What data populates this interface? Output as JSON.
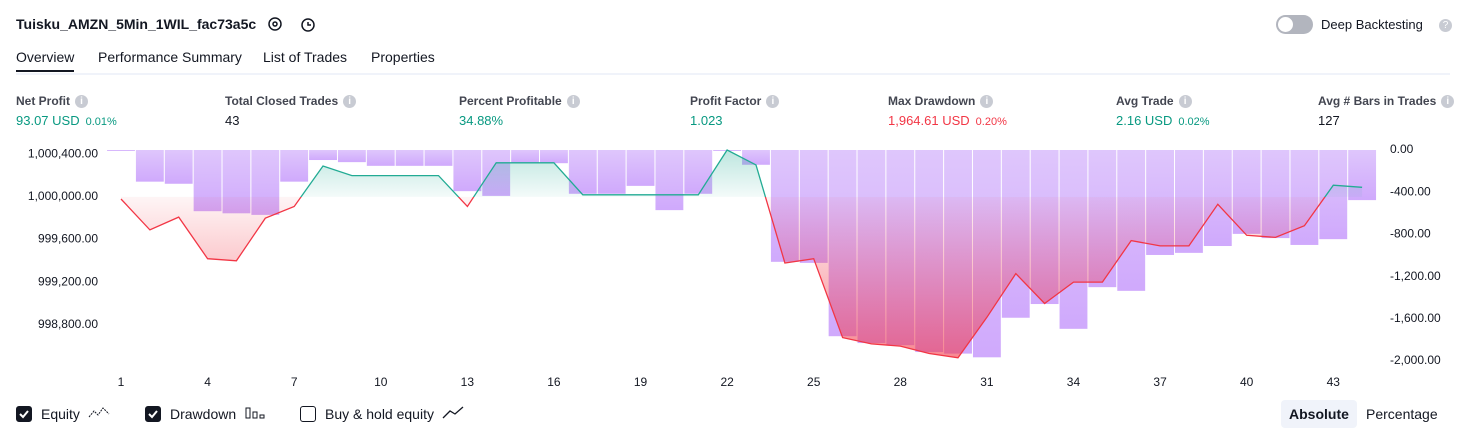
{
  "header": {
    "title": "Tuisku_AMZN_5Min_1WIL_fac73a5c",
    "deep_backtesting": "Deep Backtesting"
  },
  "tabs": [
    {
      "label": "Overview",
      "active": true
    },
    {
      "label": "Performance Summary",
      "active": false
    },
    {
      "label": "List of Trades",
      "active": false
    },
    {
      "label": "Properties",
      "active": false
    }
  ],
  "metrics": [
    {
      "label": "Net Profit",
      "value": "93.07 USD",
      "percent": "0.01%",
      "color": "#089981"
    },
    {
      "label": "Total Closed Trades",
      "value": "43",
      "color": "#131722"
    },
    {
      "label": "Percent Profitable",
      "value": "34.88%",
      "color": "#089981"
    },
    {
      "label": "Profit Factor",
      "value": "1.023",
      "color": "#089981"
    },
    {
      "label": "Max Drawdown",
      "value": "1,964.61 USD",
      "percent": "0.20%",
      "color": "#f23645"
    },
    {
      "label": "Avg Trade",
      "value": "2.16 USD",
      "percent": "0.02%",
      "color": "#089981"
    },
    {
      "label": "Avg # Bars in Trades",
      "value": "127",
      "color": "#131722"
    }
  ],
  "chart_data": {
    "type": "combo",
    "x": [
      1,
      2,
      3,
      4,
      5,
      6,
      7,
      8,
      9,
      10,
      11,
      12,
      13,
      14,
      15,
      16,
      17,
      18,
      19,
      20,
      21,
      22,
      23,
      24,
      25,
      26,
      27,
      28,
      29,
      30,
      31,
      32,
      33,
      34,
      35,
      36,
      37,
      38,
      39,
      40,
      41,
      42,
      43,
      44
    ],
    "xlim": [
      0.55,
      44.55
    ],
    "xticks": [
      1,
      4,
      7,
      10,
      13,
      16,
      19,
      22,
      25,
      28,
      31,
      34,
      37,
      40,
      43
    ],
    "ylim": [
      998460,
      1000440
    ],
    "yticks": [
      {
        "value": 1000400,
        "label": "1,000,400.00"
      },
      {
        "value": 1000000,
        "label": "1,000,000.00"
      },
      {
        "value": 999600,
        "label": "999,600.00"
      },
      {
        "value": 999200,
        "label": "999,200.00"
      },
      {
        "value": 998800,
        "label": "998,800.00"
      }
    ],
    "y2lim": [
      -2000,
      0
    ],
    "y2ticks": [
      {
        "value": 0,
        "label": "0.00"
      },
      {
        "value": -400,
        "label": "-400.00"
      },
      {
        "value": -800,
        "label": "-800.00"
      },
      {
        "value": -1200,
        "label": "-1,200.00"
      },
      {
        "value": -1600,
        "label": "-1,600.00"
      },
      {
        "value": -2000,
        "label": "-2,000.00"
      }
    ],
    "series": [
      {
        "name": "Equity",
        "type": "line",
        "checked": true,
        "color": "#22ab94",
        "negative_color": "#f23645",
        "values": [
          999980,
          999690,
          999810,
          999420,
          999400,
          999800,
          999910,
          1000290,
          1000200,
          1000200,
          1000200,
          1000200,
          999910,
          1000320,
          1000320,
          1000320,
          1000020,
          1000020,
          1000020,
          1000020,
          1000020,
          1000440,
          1000300,
          999380,
          999420,
          998680,
          998620,
          998600,
          998530,
          998490,
          998870,
          999280,
          999000,
          999200,
          999200,
          999590,
          999540,
          999540,
          999930,
          999640,
          999620,
          999730,
          1000110,
          1000090
        ]
      },
      {
        "name": "Drawdown",
        "type": "bar",
        "axis": "y2",
        "checked": true,
        "color": "#c99bfc",
        "values": [
          -5,
          -300,
          -320,
          -580,
          -600,
          -615,
          -300,
          -95,
          -115,
          -150,
          -150,
          -150,
          -390,
          -435,
          -125,
          -125,
          -415,
          -415,
          -340,
          -570,
          -415,
          0,
          -140,
          -1060,
          -1070,
          -1765,
          -1830,
          -1850,
          -1915,
          -1930,
          -1965,
          -1590,
          -1460,
          -1695,
          -1300,
          -1335,
          -995,
          -975,
          -910,
          -795,
          -835,
          -900,
          -845,
          -475
        ]
      }
    ],
    "extra_legend": {
      "name": "Buy & hold equity",
      "checked": false
    }
  },
  "modes": [
    {
      "label": "Absolute",
      "active": true
    },
    {
      "label": "Percentage",
      "active": false
    }
  ]
}
